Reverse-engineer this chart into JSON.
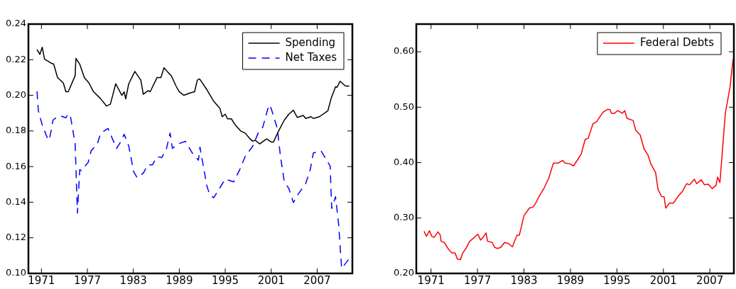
{
  "chart_data": [
    {
      "type": "line",
      "x": [
        1970.42,
        1970.8,
        1971.1,
        1971.4,
        1972.3,
        1972.6,
        1973.1,
        1973.85,
        1974.2,
        1974.5,
        1975.4,
        1975.5,
        1976.0,
        1976.6,
        1977.2,
        1977.8,
        1978.75,
        1979.5,
        1980.0,
        1980.7,
        1981.5,
        1981.8,
        1982.0,
        1982.4,
        1983.2,
        1983.98,
        1984.3,
        1984.9,
        1985.2,
        1986.1,
        1986.6,
        1987.0,
        1987.5,
        1987.96,
        1988.6,
        1989.0,
        1989.6,
        1990.4,
        1991.0,
        1991.35,
        1991.65,
        1992.6,
        1993.5,
        1994.3,
        1994.6,
        1995.0,
        1995.3,
        1995.8,
        1996.3,
        1997.0,
        1997.6,
        1998.25,
        1998.6,
        1998.9,
        1999.5,
        2000.4,
        2001.0,
        2001.3,
        2001.9,
        2002.7,
        2003.3,
        2003.9,
        2004.4,
        2005.2,
        2005.5,
        2006.2,
        2006.5,
        2007.3,
        2008.4,
        2008.8,
        2009.4,
        2009.6,
        2010.0,
        2010.7,
        2011.2
      ],
      "series": [
        {
          "name": "Spending",
          "color": "#000000",
          "line_style": "solid",
          "values": [
            0.2257,
            0.223,
            0.227,
            0.2204,
            0.218,
            0.2175,
            0.21,
            0.207,
            0.202,
            0.202,
            0.211,
            0.2207,
            0.2175,
            0.21,
            0.207,
            0.202,
            0.198,
            0.194,
            0.195,
            0.2065,
            0.2,
            0.202,
            0.198,
            0.2065,
            0.2134,
            0.2085,
            0.2006,
            0.2026,
            0.202,
            0.21,
            0.21,
            0.2155,
            0.213,
            0.211,
            0.205,
            0.202,
            0.2,
            0.2013,
            0.202,
            0.2085,
            0.2092,
            0.2032,
            0.1966,
            0.1927,
            0.188,
            0.1894,
            0.1868,
            0.1868,
            0.1834,
            0.18,
            0.1788,
            0.1755,
            0.1742,
            0.1748,
            0.1727,
            0.1755,
            0.1738,
            0.1738,
            0.1794,
            0.186,
            0.1894,
            0.1916,
            0.1876,
            0.1887,
            0.187,
            0.188,
            0.187,
            0.188,
            0.1913,
            0.1979,
            0.2048,
            0.2045,
            0.2079,
            0.2052,
            0.2052
          ]
        },
        {
          "name": "Net Taxes",
          "color": "#0000ff",
          "line_style": "dashed",
          "x": [
            1970.42,
            1970.6,
            1971.1,
            1971.7,
            1972.0,
            1972.3,
            1972.5,
            1972.9,
            1973.5,
            1974.2,
            1974.5,
            1974.8,
            1975.4,
            1975.7,
            1976.0,
            1976.2,
            1977.1,
            1977.5,
            1978.3,
            1978.75,
            1979.7,
            1980.8,
            1981.2,
            1981.8,
            1982.4,
            1983.05,
            1983.5,
            1984.3,
            1984.9,
            1985.5,
            1986.1,
            1986.7,
            1987.3,
            1987.8,
            1988.1,
            1988.9,
            1989.8,
            1990.7,
            1991.5,
            1991.7,
            1992.6,
            1993.0,
            1993.5,
            1995.0,
            1996.1,
            1996.9,
            1997.6,
            1998.6,
            1999.3,
            1999.9,
            2000.7,
            2001.0,
            2001.8,
            2002.2,
            2002.7,
            2003.3,
            2003.9,
            2004.5,
            2005.5,
            2006.1,
            2006.5,
            2007.5,
            2008.7,
            2008.9,
            2009.4,
            2009.8,
            2010.2,
            2011.1
          ],
          "values": [
            0.2022,
            0.1913,
            0.1834,
            0.1768,
            0.1748,
            0.1807,
            0.186,
            0.1874,
            0.1884,
            0.1874,
            0.1897,
            0.188,
            0.1728,
            0.1339,
            0.1583,
            0.1577,
            0.1623,
            0.1689,
            0.1728,
            0.1788,
            0.1814,
            0.1702,
            0.1728,
            0.1781,
            0.1715,
            0.157,
            0.1537,
            0.1563,
            0.161,
            0.161,
            0.1656,
            0.165,
            0.1696,
            0.1788,
            0.1702,
            0.1728,
            0.1742,
            0.1676,
            0.1636,
            0.1709,
            0.1491,
            0.1438,
            0.1425,
            0.153,
            0.1514,
            0.1583,
            0.1656,
            0.1715,
            0.1788,
            0.1821,
            0.1946,
            0.1926,
            0.1814,
            0.1662,
            0.1517,
            0.1477,
            0.1398,
            0.1444,
            0.1504,
            0.1583,
            0.1676,
            0.1689,
            0.1603,
            0.1365,
            0.1431,
            0.128,
            0.1028,
            0.1078
          ]
        }
      ],
      "xlim": [
        1969.3,
        2011.6
      ],
      "xticks": [
        1971,
        1977,
        1983,
        1989,
        1995,
        2001,
        2007
      ],
      "ylim": [
        0.1,
        0.24
      ],
      "yticks": [
        {
          "value": 0.1,
          "label": "0.10"
        },
        {
          "value": 0.12,
          "label": "0.12"
        },
        {
          "value": 0.14,
          "label": "0.14"
        },
        {
          "value": 0.16,
          "label": "0.16"
        },
        {
          "value": 0.18,
          "label": "0.18"
        },
        {
          "value": 0.2,
          "label": "0.20"
        },
        {
          "value": 0.22,
          "label": "0.22"
        },
        {
          "value": 0.24,
          "label": "0.24"
        }
      ],
      "legend": "top right",
      "grid": false
    },
    {
      "type": "line",
      "x": [
        1970.1,
        1970.4,
        1970.8,
        1971.1,
        1971.4,
        1971.9,
        1972.2,
        1972.3,
        1972.7,
        1973.1,
        1973.4,
        1973.7,
        1974.1,
        1974.4,
        1974.8,
        1975.1,
        1975.5,
        1976.0,
        1976.6,
        1977.05,
        1977.4,
        1977.7,
        1978.1,
        1978.3,
        1978.9,
        1979.2,
        1979.6,
        1980.0,
        1980.5,
        1981.0,
        1981.5,
        1982.1,
        1982.4,
        1983.0,
        1983.7,
        1984.2,
        1984.6,
        1984.95,
        1985.6,
        1986.2,
        1986.8,
        1987.4,
        1988.0,
        1988.3,
        1988.9,
        1989.4,
        1990.1,
        1990.4,
        1990.9,
        1991.3,
        1991.9,
        1992.4,
        1993.2,
        1993.8,
        1994.1,
        1994.3,
        1994.7,
        1995.1,
        1995.7,
        1996.0,
        1996.3,
        1997.1,
        1997.4,
        1998.0,
        1998.5,
        1999.0,
        1999.4,
        2000.0,
        2000.3,
        2000.75,
        2001.1,
        2001.3,
        2001.8,
        2002.3,
        2002.9,
        2003.5,
        2004.0,
        2004.4,
        2005.0,
        2005.3,
        2005.9,
        2006.3,
        2006.8,
        2007.3,
        2007.8,
        2008.0,
        2008.3,
        2008.7,
        2009.0,
        2009.6,
        2010.0
      ],
      "series": [
        {
          "name": "Federal Debts",
          "color": "#ff0000",
          "line_style": "solid",
          "values": [
            0.276,
            0.267,
            0.277,
            0.267,
            0.265,
            0.275,
            0.269,
            0.258,
            0.256,
            0.247,
            0.241,
            0.237,
            0.237,
            0.226,
            0.225,
            0.237,
            0.245,
            0.258,
            0.265,
            0.271,
            0.26,
            0.265,
            0.273,
            0.258,
            0.256,
            0.247,
            0.245,
            0.247,
            0.256,
            0.254,
            0.248,
            0.269,
            0.269,
            0.304,
            0.318,
            0.32,
            0.329,
            0.339,
            0.354,
            0.372,
            0.399,
            0.399,
            0.404,
            0.399,
            0.398,
            0.394,
            0.409,
            0.416,
            0.442,
            0.444,
            0.47,
            0.474,
            0.491,
            0.496,
            0.496,
            0.489,
            0.489,
            0.494,
            0.489,
            0.494,
            0.48,
            0.476,
            0.459,
            0.45,
            0.425,
            0.414,
            0.397,
            0.382,
            0.352,
            0.339,
            0.338,
            0.318,
            0.327,
            0.327,
            0.339,
            0.349,
            0.362,
            0.36,
            0.37,
            0.362,
            0.369,
            0.36,
            0.361,
            0.353,
            0.359,
            0.374,
            0.364,
            0.436,
            0.489,
            0.536,
            0.587
          ]
        }
      ],
      "xlim": [
        1969.1,
        2010.1
      ],
      "xticks": [
        1971,
        1977,
        1983,
        1989,
        1995,
        2001,
        2007
      ],
      "ylim": [
        0.2,
        0.65
      ],
      "yticks": [
        {
          "value": 0.2,
          "label": "0.20"
        },
        {
          "value": 0.3,
          "label": "0.30"
        },
        {
          "value": 0.4,
          "label": "0.40"
        },
        {
          "value": 0.5,
          "label": "0.50"
        },
        {
          "value": 0.6,
          "label": "0.60"
        }
      ],
      "legend": "top right",
      "grid": false
    }
  ]
}
